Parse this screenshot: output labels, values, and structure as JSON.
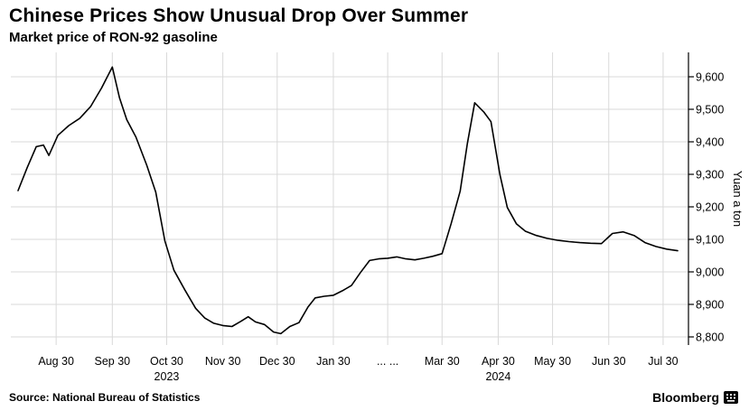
{
  "header": {
    "title": "Chinese Prices Show Unusual Drop Over Summer",
    "subtitle": "Market price of RON-92 gasoline"
  },
  "footer": {
    "source": "Source: National Bureau of Statistics",
    "brand": "Bloomberg"
  },
  "chart_data": {
    "type": "line",
    "title": "Chinese Prices Show Unusual Drop Over Summer",
    "subtitle": "Market price of RON-92 gasoline",
    "ylabel": "Yuan a ton",
    "series_name": "RON-92 gasoline market price",
    "x_unit": "days since 2023-08-01",
    "x_domain": [
      4,
      378
    ],
    "ylim_plot": [
      8775,
      9675
    ],
    "yticks": [
      8800,
      8900,
      9000,
      9100,
      9200,
      9300,
      9400,
      9500,
      9600
    ],
    "grid": true,
    "legend": "none",
    "line_color": "#000000",
    "grid_color": "#d9d9d9",
    "axis_color": "#000000",
    "xticks": [
      {
        "day": 29,
        "label": "Aug 30"
      },
      {
        "day": 60,
        "label": "Sep 30"
      },
      {
        "day": 90,
        "label": "Oct 30",
        "sub": "2023"
      },
      {
        "day": 121,
        "label": "Nov 30"
      },
      {
        "day": 151,
        "label": "Dec 30"
      },
      {
        "day": 182,
        "label": "Jan 30"
      },
      {
        "day": 212,
        "label": "... ..."
      },
      {
        "day": 242,
        "label": "Mar 30"
      },
      {
        "day": 273,
        "label": "Apr 30",
        "sub": "2024"
      },
      {
        "day": 303,
        "label": "May 30"
      },
      {
        "day": 334,
        "label": "Jun 30"
      },
      {
        "day": 364,
        "label": "Jul 30"
      }
    ],
    "points": [
      [
        8,
        9250
      ],
      [
        13,
        9320
      ],
      [
        18,
        9385
      ],
      [
        22,
        9390
      ],
      [
        25,
        9358
      ],
      [
        30,
        9420
      ],
      [
        36,
        9450
      ],
      [
        42,
        9472
      ],
      [
        48,
        9508
      ],
      [
        54,
        9565
      ],
      [
        60,
        9630
      ],
      [
        64,
        9535
      ],
      [
        68,
        9468
      ],
      [
        73,
        9415
      ],
      [
        79,
        9328
      ],
      [
        84,
        9245
      ],
      [
        89,
        9095
      ],
      [
        94,
        9005
      ],
      [
        100,
        8945
      ],
      [
        106,
        8888
      ],
      [
        111,
        8858
      ],
      [
        116,
        8842
      ],
      [
        121,
        8835
      ],
      [
        126,
        8832
      ],
      [
        131,
        8848
      ],
      [
        135,
        8862
      ],
      [
        139,
        8846
      ],
      [
        144,
        8838
      ],
      [
        149,
        8815
      ],
      [
        153,
        8810
      ],
      [
        158,
        8832
      ],
      [
        163,
        8844
      ],
      [
        168,
        8892
      ],
      [
        172,
        8920
      ],
      [
        177,
        8925
      ],
      [
        182,
        8928
      ],
      [
        187,
        8942
      ],
      [
        192,
        8958
      ],
      [
        197,
        8998
      ],
      [
        202,
        9035
      ],
      [
        207,
        9040
      ],
      [
        212,
        9042
      ],
      [
        217,
        9046
      ],
      [
        222,
        9040
      ],
      [
        227,
        9037
      ],
      [
        232,
        9042
      ],
      [
        237,
        9048
      ],
      [
        242,
        9056
      ],
      [
        247,
        9148
      ],
      [
        252,
        9248
      ],
      [
        256,
        9395
      ],
      [
        260,
        9520
      ],
      [
        265,
        9492
      ],
      [
        269,
        9462
      ],
      [
        274,
        9298
      ],
      [
        278,
        9198
      ],
      [
        283,
        9148
      ],
      [
        288,
        9125
      ],
      [
        294,
        9112
      ],
      [
        300,
        9103
      ],
      [
        306,
        9097
      ],
      [
        312,
        9093
      ],
      [
        318,
        9090
      ],
      [
        324,
        9088
      ],
      [
        330,
        9087
      ],
      [
        336,
        9118
      ],
      [
        342,
        9123
      ],
      [
        348,
        9112
      ],
      [
        354,
        9090
      ],
      [
        360,
        9078
      ],
      [
        366,
        9070
      ],
      [
        372,
        9065
      ]
    ]
  }
}
